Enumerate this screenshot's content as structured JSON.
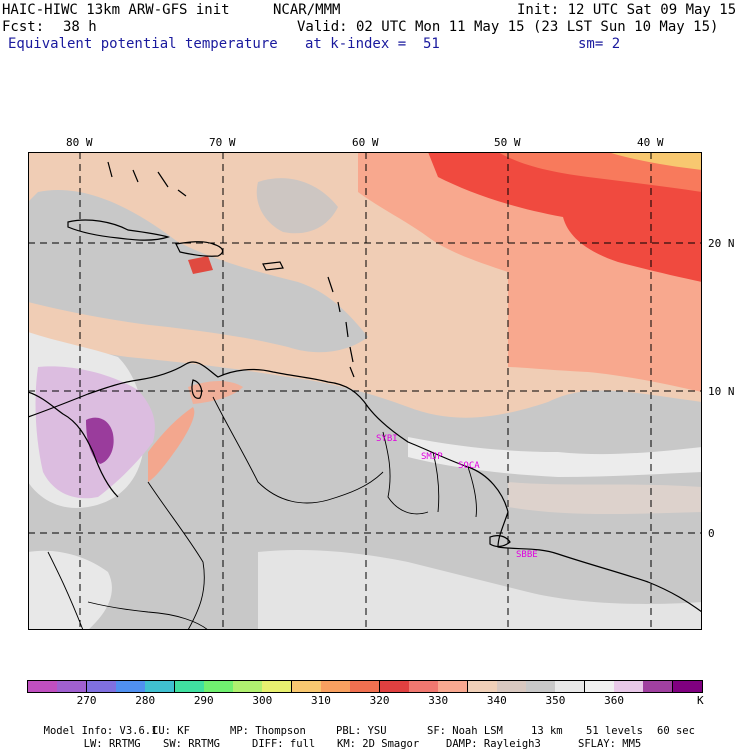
{
  "header": {
    "model_title": "HAIC-HIWC 13km ARW-GFS init",
    "center": "NCAR/MMM",
    "init": "Init: 12 UTC Sat 09 May 15",
    "fcst_label": "Fcst:",
    "fcst_value": "38 h",
    "valid": "Valid: 02 UTC Mon 11 May 15 (23 LST Sun 10 May 15)",
    "field": "Equivalent potential temperature",
    "level": "at k-index =  51",
    "smoothing": "sm= 2"
  },
  "map": {
    "lon_labels": [
      "80 W",
      "70 W",
      "60 W",
      "50 W",
      "40 W"
    ],
    "lat_labels": [
      "20 N",
      "10 N",
      "0"
    ],
    "stations": [
      "SYBI",
      "SMJP",
      "SOCA",
      "SBBE"
    ]
  },
  "colorbar": {
    "colors": [
      "#c04fc0",
      "#a060d0",
      "#8070e0",
      "#5090f0",
      "#40c0d0",
      "#40e0a0",
      "#70f070",
      "#b0f070",
      "#e8f070",
      "#f8c870",
      "#f8a060",
      "#f07050",
      "#e04040",
      "#f07870",
      "#f8a890",
      "#f0d0b8",
      "#d8c8c0",
      "#c8c8c8",
      "#e8e8e8",
      "#f0f0f0",
      "#e8c8e8",
      "#a040a0",
      "#800080"
    ],
    "tick_labels": [
      "270",
      "280",
      "290",
      "300",
      "310",
      "320",
      "330",
      "340",
      "350",
      "360"
    ],
    "unit": "K"
  },
  "footer": {
    "line1": [
      "Model Info: V3.6.1",
      "CU: KF",
      "MP: Thompson",
      "PBL: YSU",
      "SF: Noah LSM",
      "13 km",
      "51 levels",
      "60 sec"
    ],
    "line2": [
      "LW: RRTMG",
      "SW: RRTMG",
      "DIFF: full",
      "KM: 2D Smagor",
      "DAMP: Rayleigh3",
      "SFLAY: MM5"
    ]
  }
}
